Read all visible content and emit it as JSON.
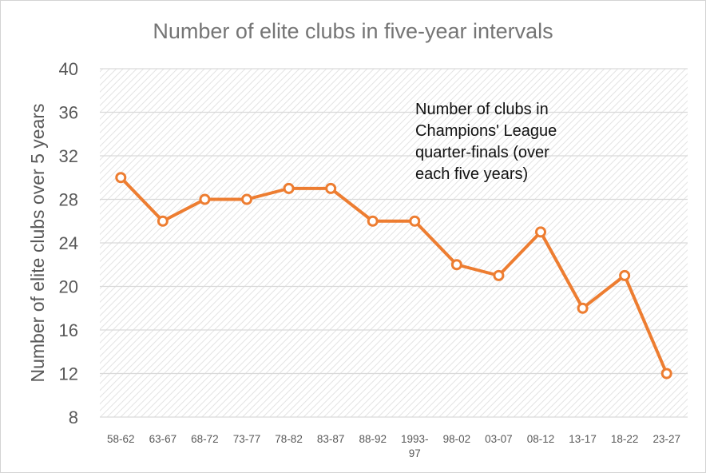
{
  "chart_data": {
    "type": "line",
    "title": "Number of elite clubs in five-year intervals",
    "xlabel": "",
    "ylabel": "Number of elite clubs over 5 years",
    "annotation": "Number of clubs in Champions' League quarter-finals (over each five years)",
    "categories": [
      "58-62",
      "63-67",
      "68-72",
      "73-77",
      "78-82",
      "83-87",
      "88-92",
      "1993-97",
      "98-02",
      "03-07",
      "08-12",
      "13-17",
      "18-22",
      "23-27"
    ],
    "values": [
      30,
      26,
      28,
      28,
      29,
      29,
      26,
      26,
      22,
      21,
      25,
      18,
      21,
      12
    ],
    "ylim": [
      8,
      40
    ],
    "yticks": [
      8,
      12,
      16,
      20,
      24,
      28,
      32,
      36,
      40
    ],
    "grid": true,
    "colors": {
      "line": "#ed7d31",
      "grid": "#d9d9d9",
      "hatch": "#e6e6e6",
      "text": "#595959",
      "title": "#757575"
    }
  }
}
